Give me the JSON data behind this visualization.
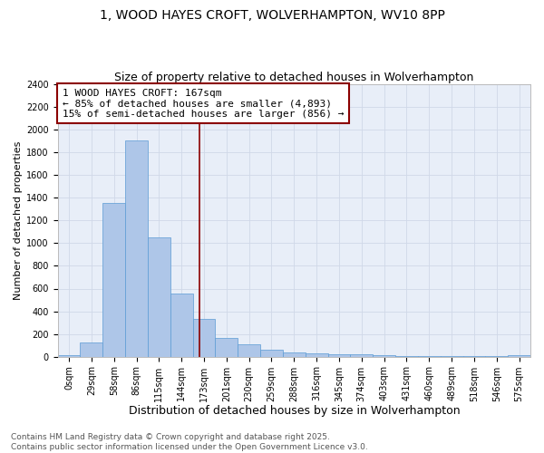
{
  "title1": "1, WOOD HAYES CROFT, WOLVERHAMPTON, WV10 8PP",
  "title2": "Size of property relative to detached houses in Wolverhampton",
  "xlabel": "Distribution of detached houses by size in Wolverhampton",
  "ylabel": "Number of detached properties",
  "footnote": "Contains HM Land Registry data © Crown copyright and database right 2025.\nContains public sector information licensed under the Open Government Licence v3.0.",
  "bin_labels": [
    "0sqm",
    "29sqm",
    "58sqm",
    "86sqm",
    "115sqm",
    "144sqm",
    "173sqm",
    "201sqm",
    "230sqm",
    "259sqm",
    "288sqm",
    "316sqm",
    "345sqm",
    "374sqm",
    "403sqm",
    "431sqm",
    "460sqm",
    "489sqm",
    "518sqm",
    "546sqm",
    "575sqm"
  ],
  "bar_heights": [
    15,
    125,
    1355,
    1910,
    1055,
    560,
    335,
    165,
    110,
    60,
    35,
    27,
    22,
    20,
    15,
    5,
    5,
    3,
    2,
    2,
    15
  ],
  "bar_color": "#aec6e8",
  "bar_edgecolor": "#5b9bd5",
  "bar_width": 1.0,
  "vline_x": 5.79,
  "vline_color": "#8b0000",
  "annotation_box_text": "1 WOOD HAYES CROFT: 167sqm\n← 85% of detached houses are smaller (4,893)\n15% of semi-detached houses are larger (856) →",
  "annotation_box_color": "#8b0000",
  "annotation_box_facecolor": "white",
  "ylim": [
    0,
    2400
  ],
  "yticks": [
    0,
    200,
    400,
    600,
    800,
    1000,
    1200,
    1400,
    1600,
    1800,
    2000,
    2200,
    2400
  ],
  "grid_color": "#d0d8e8",
  "background_color": "#e8eef8",
  "title1_fontsize": 10,
  "title2_fontsize": 9,
  "xlabel_fontsize": 9,
  "ylabel_fontsize": 8,
  "tick_fontsize": 7,
  "annotation_fontsize": 8,
  "footnote_fontsize": 6.5
}
